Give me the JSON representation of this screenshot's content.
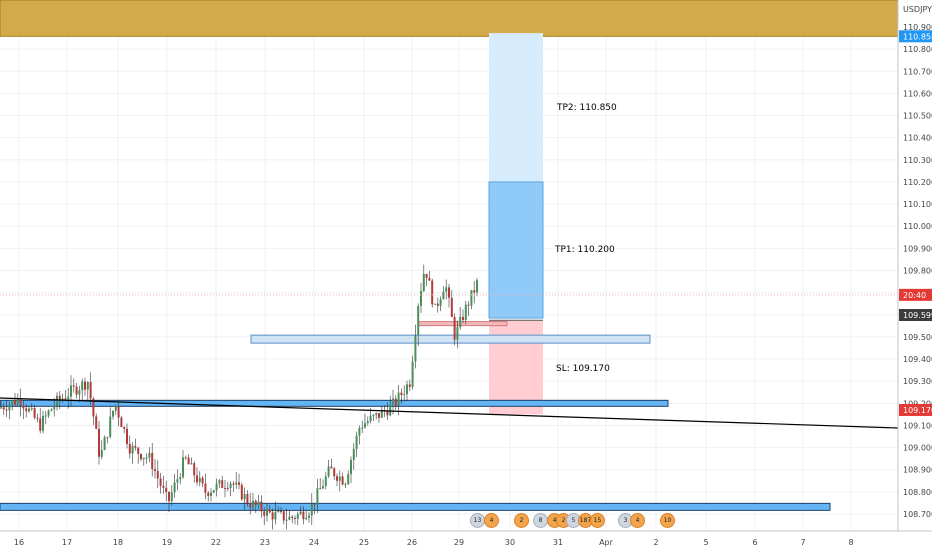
{
  "chart_data": {
    "type": "candlestick",
    "symbol_label": "USDJPY",
    "ylim": [
      108.63,
      111.02
    ],
    "y_ticks": [
      108.7,
      108.8,
      108.9,
      109.0,
      109.1,
      109.2,
      109.3,
      109.4,
      109.5,
      109.6,
      109.7,
      109.8,
      109.9,
      110.0,
      110.1,
      110.2,
      110.3,
      110.4,
      110.5,
      110.6,
      110.7,
      110.8,
      110.9
    ],
    "y_tick_labels": [
      "108.700",
      "108.800",
      "108.900",
      "109.000",
      "109.100",
      "109.200",
      "109.300",
      "109.400",
      "109.500",
      "109.600",
      "109.700",
      "109.800",
      "109.900",
      "110.000",
      "110.100",
      "110.200",
      "110.300",
      "110.400",
      "110.500",
      "110.600",
      "110.700",
      "110.800",
      "110.900"
    ],
    "x_ticks": [
      "16",
      "17",
      "18",
      "19",
      "22",
      "23",
      "24",
      "25",
      "26",
      "29",
      "30",
      "31",
      "Apr",
      "2",
      "5",
      "6",
      "7",
      "8"
    ],
    "price_labels": [
      {
        "text": "110.858",
        "value": 110.858,
        "color": "#2196f3"
      },
      {
        "text": "20:40",
        "value": 109.69,
        "color": "#e53935"
      },
      {
        "text": "109.599",
        "value": 109.599,
        "color": "#3c3c3c"
      },
      {
        "text": "109.170",
        "value": 109.17,
        "color": "#e53935"
      }
    ],
    "annotations": [
      {
        "text": "TP2: 110.850",
        "value": 110.85
      },
      {
        "text": "TP1: 110.200",
        "value": 110.2
      },
      {
        "text": "SL: 109.170",
        "value": 109.17
      }
    ],
    "resistance_zone": {
      "from": 110.858,
      "to": 111.02,
      "color": "#d4a94a"
    },
    "entry": 109.575,
    "events": [
      "13",
      "4",
      "2",
      "8",
      "4",
      "2",
      "5",
      "187",
      "15",
      "3",
      "4",
      "10"
    ]
  }
}
